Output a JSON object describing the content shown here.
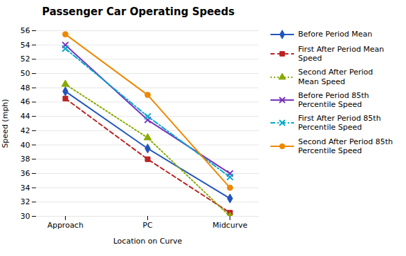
{
  "chart_data": {
    "type": "line",
    "title": "Passenger Car Operating Speeds",
    "xlabel": "Location on Curve",
    "ylabel": "Speed (mph)",
    "categories": [
      "Approach",
      "PC",
      "Midcurve"
    ],
    "series": [
      {
        "name": "Before Period Mean",
        "color": "#2255BB",
        "values": [
          47.5,
          39.5,
          32.5
        ],
        "marker": "diamond",
        "line_style": "solid"
      },
      {
        "name": "First After Period Mean\nSpeed",
        "color": "#BB2222",
        "values": [
          46.5,
          38.0,
          30.5
        ],
        "marker": "square",
        "line_style": "dashed"
      },
      {
        "name": "Second After Period\nMean Speed",
        "color": "#88AA00",
        "values": [
          48.5,
          41.0,
          30.0
        ],
        "marker": "triangle",
        "line_style": "dotted"
      },
      {
        "name": "Before Period 85th\nPercentile Speed",
        "color": "#7733BB",
        "values": [
          54.0,
          43.5,
          36.0
        ],
        "marker": "x",
        "line_style": "solid"
      },
      {
        "name": "First After Period 85th\nPercentile Speed",
        "color": "#00AACC",
        "values": [
          53.5,
          44.0,
          35.5
        ],
        "marker": "x",
        "line_style": "dashdot"
      },
      {
        "name": "Second After Period 85th\nPercentile Speed",
        "color": "#EE8800",
        "values": [
          55.5,
          47.0,
          34.0
        ],
        "marker": "circle",
        "line_style": "solid"
      }
    ],
    "ylim": [
      30,
      56
    ],
    "yticks": [
      30,
      32,
      34,
      36,
      38,
      40,
      42,
      44,
      46,
      48,
      50,
      52,
      54,
      56
    ],
    "grid": true,
    "legend": "upper right"
  }
}
